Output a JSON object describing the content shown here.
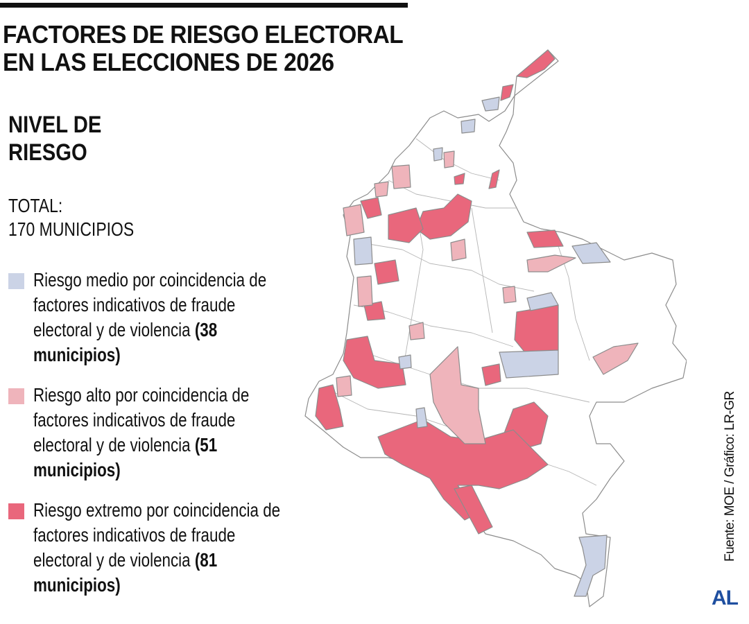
{
  "title": {
    "line1": "FACTORES DE RIESGO ELECTORAL",
    "line2": "EN LAS ELECCIONES DE 2026"
  },
  "subtitle": {
    "line1": "NIVEL DE",
    "line2": "RIESGO"
  },
  "total": {
    "line1": "TOTAL:",
    "line2": "170 MUNICIPIOS"
  },
  "legend": [
    {
      "text": "Riesgo medio por coincidencia de factores indicativos de fraude electoral y de violencia ",
      "count": "(38 municipios)",
      "color": "#cbd3e6"
    },
    {
      "text": "Riesgo alto por coincidencia de factores indicativos de fraude electoral y de violencia ",
      "count": "(51 municipios)",
      "color": "#efb4bb"
    },
    {
      "text": "Riesgo extremo por coincidencia de factores indicativos de fraude electoral y de violencia ",
      "count": "(81 municipios)",
      "color": "#e9677c"
    }
  ],
  "source": "Fuente: MOE / Gráfico: LR-GR",
  "logo": "AL",
  "map_colors": {
    "medio": "#cbd3e6",
    "alto": "#efb4bb",
    "extremo": "#e9677c",
    "border": "#8c8c8c",
    "land": "#ffffff"
  }
}
